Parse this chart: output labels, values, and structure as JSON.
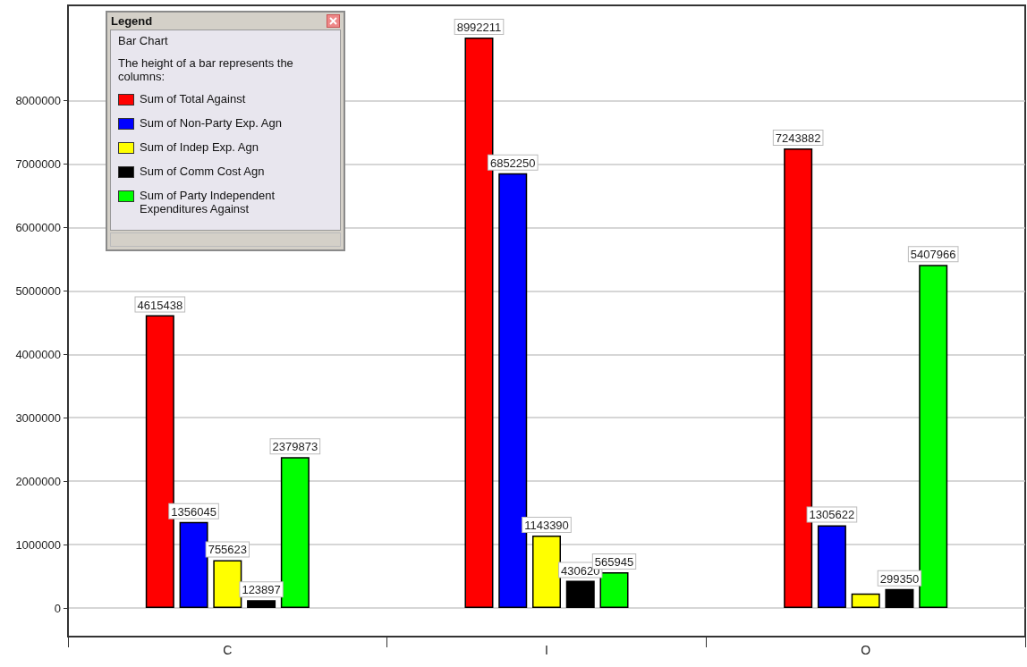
{
  "chart_data": {
    "type": "bar",
    "legend_title": "Legend",
    "annotations": [
      "Bar Chart",
      "The height of a bar represents the columns:"
    ],
    "categories": [
      "C",
      "I",
      "O"
    ],
    "series": [
      {
        "name": "Sum of Total Against",
        "color": "#ff0000",
        "values": [
          4615438,
          8992211,
          7243882
        ],
        "value_labels": [
          "4615438",
          "8992211",
          "7243882"
        ]
      },
      {
        "name": "Sum of Non-Party Exp. Agn",
        "color": "#0000ff",
        "values": [
          1356045,
          6852250,
          1305622
        ],
        "value_labels": [
          "1356045",
          "6852250",
          "1305622"
        ]
      },
      {
        "name": "Sum of Indep Exp. Agn",
        "color": "#ffff00",
        "values": [
          755623,
          1143390,
          230000
        ],
        "value_labels": [
          "755623",
          "1143390",
          null
        ]
      },
      {
        "name": "Sum of Comm Cost Agn",
        "color": "#000000",
        "values": [
          123897,
          430620,
          299350
        ],
        "value_labels": [
          "123897",
          "430620",
          "299350"
        ]
      },
      {
        "name": "Sum of Party Independent Expenditures Against",
        "color": "#00ff00",
        "values": [
          2379873,
          565945,
          5407966
        ],
        "value_labels": [
          "2379873",
          "565945",
          "5407966"
        ]
      }
    ],
    "ylim": [
      -450000,
      9500000
    ],
    "yticks": [
      0,
      1000000,
      2000000,
      3000000,
      4000000,
      5000000,
      6000000,
      7000000,
      8000000
    ],
    "grid": "y",
    "legend": "top left"
  }
}
